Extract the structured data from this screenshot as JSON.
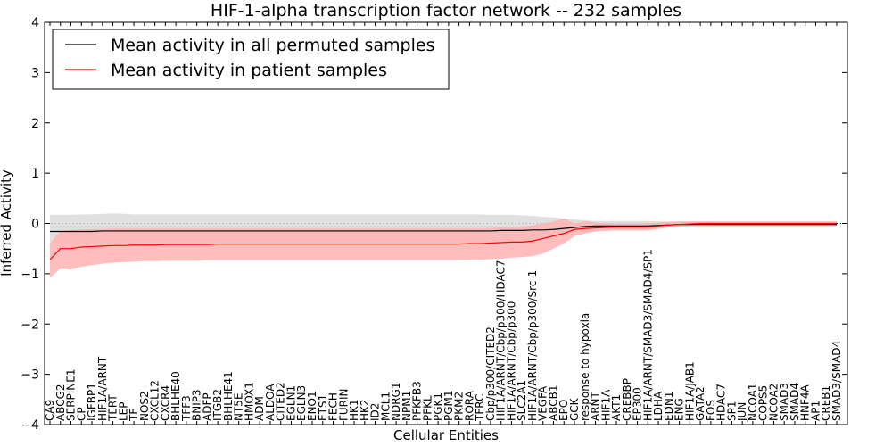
{
  "chart_data": {
    "type": "line",
    "title": "HIF-1-alpha transcription factor network -- 232 samples",
    "xlabel": "Cellular Entities",
    "ylabel": "Inferred Activity",
    "ylim": [
      -4,
      4
    ],
    "yticks": [
      "4",
      "3",
      "2",
      "1",
      "0",
      "−1",
      "−2",
      "−3",
      "−4"
    ],
    "ytick_values": [
      4,
      3,
      2,
      1,
      0,
      -1,
      -2,
      -3,
      -4
    ],
    "legend_position": "top-left",
    "categories": [
      "CA9",
      "ABCG2",
      "SERPINE1",
      "CP",
      "IGFBP1",
      "HIF1A/ARNT",
      "TERT",
      "LEP",
      "TF",
      "NOS2",
      "CXCL12",
      "CXCR4",
      "BHLHE40",
      "TFF3",
      "BNIP3",
      "ADFP",
      "ITGB2",
      "BHLHE41",
      "NT5E",
      "HMOX1",
      "ADM",
      "ALDOA",
      "CITED2",
      "EGLN1",
      "EGLN3",
      "ENO1",
      "ETS1",
      "FECH",
      "FURIN",
      "HK1",
      "HK2",
      "ID2",
      "MCL1",
      "NDRG1",
      "NPM1",
      "PFKFB3",
      "PFKL",
      "PGK1",
      "PGM1",
      "PKM2",
      "RORA",
      "TFRC",
      "Cbp/p300/CITED2",
      "HIF1A/ARNT/Cbp/p300/HDAC7",
      "HIF1A/ARNT/Cbp/p300",
      "SLC2A1",
      "HIF1A/ARNT/Cbp/p300/Src-1",
      "VEGFA",
      "ABCB1",
      "EPO",
      "GCK",
      "response to hypoxia",
      "ARNT",
      "HIF1A",
      "AKT1",
      "CREBBP",
      "EP300",
      "HIF1A/ARNT/SMAD3/SMAD4/SP1",
      "LDHA",
      "EDN1",
      "ENG",
      "HIF1A/JAB1",
      "GATA2",
      "FOS",
      "HDAC7",
      "SP1",
      "JUN",
      "NCOA1",
      "COPS5",
      "NCOA2",
      "SMAD3",
      "SMAD4",
      "HNF4A",
      "AP1",
      "CREB1",
      "SMAD3/SMAD4"
    ],
    "series": [
      {
        "name": "Mean activity in all permuted samples",
        "color": "#000000",
        "band_color": "#d3d3d3",
        "values": [
          -0.16,
          -0.16,
          -0.16,
          -0.16,
          -0.16,
          -0.15,
          -0.15,
          -0.15,
          -0.15,
          -0.15,
          -0.15,
          -0.15,
          -0.15,
          -0.15,
          -0.15,
          -0.15,
          -0.15,
          -0.15,
          -0.15,
          -0.15,
          -0.15,
          -0.15,
          -0.15,
          -0.15,
          -0.15,
          -0.15,
          -0.15,
          -0.15,
          -0.15,
          -0.15,
          -0.15,
          -0.15,
          -0.15,
          -0.15,
          -0.15,
          -0.15,
          -0.15,
          -0.15,
          -0.15,
          -0.15,
          -0.15,
          -0.15,
          -0.15,
          -0.14,
          -0.14,
          -0.14,
          -0.13,
          -0.13,
          -0.12,
          -0.1,
          -0.08,
          -0.06,
          -0.05,
          -0.05,
          -0.05,
          -0.05,
          -0.05,
          -0.05,
          -0.04,
          -0.03,
          -0.02,
          -0.02,
          -0.02,
          -0.02,
          -0.02,
          -0.02,
          -0.02,
          -0.02,
          -0.02,
          -0.02,
          -0.02,
          -0.02,
          -0.02,
          -0.02,
          -0.02,
          -0.02
        ],
        "upper": [
          0.17,
          0.17,
          0.17,
          0.18,
          0.18,
          0.19,
          0.2,
          0.19,
          0.18,
          0.18,
          0.18,
          0.18,
          0.18,
          0.18,
          0.18,
          0.18,
          0.18,
          0.18,
          0.18,
          0.18,
          0.18,
          0.18,
          0.18,
          0.18,
          0.18,
          0.18,
          0.18,
          0.18,
          0.18,
          0.18,
          0.18,
          0.18,
          0.18,
          0.18,
          0.18,
          0.18,
          0.18,
          0.18,
          0.18,
          0.18,
          0.18,
          0.18,
          0.17,
          0.17,
          0.17,
          0.16,
          0.15,
          0.13,
          0.12,
          0.1,
          0.08,
          0.06,
          0.05,
          0.05,
          0.05,
          0.05,
          0.05,
          0.05,
          0.04,
          0.04,
          0.04,
          0.04,
          0.04,
          0.04,
          0.04,
          0.04,
          0.04,
          0.04,
          0.04,
          0.04,
          0.04,
          0.04,
          0.04,
          0.04,
          0.04,
          0.04
        ],
        "lower": [
          -0.4,
          -0.4,
          -0.4,
          -0.4,
          -0.4,
          -0.4,
          -0.4,
          -0.4,
          -0.4,
          -0.4,
          -0.4,
          -0.4,
          -0.4,
          -0.4,
          -0.4,
          -0.4,
          -0.4,
          -0.4,
          -0.4,
          -0.4,
          -0.4,
          -0.4,
          -0.4,
          -0.4,
          -0.4,
          -0.4,
          -0.4,
          -0.4,
          -0.4,
          -0.4,
          -0.4,
          -0.4,
          -0.4,
          -0.4,
          -0.4,
          -0.4,
          -0.4,
          -0.4,
          -0.4,
          -0.4,
          -0.4,
          -0.4,
          -0.4,
          -0.4,
          -0.39,
          -0.38,
          -0.36,
          -0.33,
          -0.3,
          -0.26,
          -0.22,
          -0.18,
          -0.15,
          -0.13,
          -0.12,
          -0.12,
          -0.12,
          -0.12,
          -0.1,
          -0.08,
          -0.07,
          -0.07,
          -0.07,
          -0.07,
          -0.07,
          -0.07,
          -0.07,
          -0.07,
          -0.07,
          -0.07,
          -0.07,
          -0.07,
          -0.07,
          -0.07,
          -0.07,
          -0.07
        ]
      },
      {
        "name": "Mean activity in patient samples",
        "color": "#ff0000",
        "band_color": "#ffb3b3",
        "values": [
          -0.72,
          -0.5,
          -0.5,
          -0.47,
          -0.46,
          -0.45,
          -0.44,
          -0.44,
          -0.43,
          -0.43,
          -0.43,
          -0.42,
          -0.42,
          -0.42,
          -0.42,
          -0.42,
          -0.41,
          -0.41,
          -0.41,
          -0.41,
          -0.41,
          -0.41,
          -0.41,
          -0.41,
          -0.41,
          -0.41,
          -0.41,
          -0.41,
          -0.41,
          -0.41,
          -0.41,
          -0.41,
          -0.41,
          -0.41,
          -0.41,
          -0.41,
          -0.41,
          -0.41,
          -0.41,
          -0.41,
          -0.4,
          -0.4,
          -0.39,
          -0.38,
          -0.37,
          -0.37,
          -0.35,
          -0.3,
          -0.25,
          -0.2,
          -0.12,
          -0.1,
          -0.09,
          -0.08,
          -0.07,
          -0.07,
          -0.07,
          -0.07,
          -0.05,
          -0.03,
          -0.02,
          -0.01,
          0.0,
          0.0,
          0.0,
          0.0,
          0.0,
          0.0,
          0.0,
          0.0,
          0.0,
          0.0,
          0.0,
          0.0,
          0.0,
          0.0
        ],
        "upper": [
          -0.4,
          -0.15,
          -0.13,
          -0.12,
          -0.11,
          -0.11,
          -0.1,
          -0.1,
          -0.1,
          -0.1,
          -0.1,
          -0.1,
          -0.1,
          -0.1,
          -0.1,
          -0.1,
          -0.1,
          -0.1,
          -0.1,
          -0.1,
          -0.1,
          -0.1,
          -0.1,
          -0.1,
          -0.1,
          -0.1,
          -0.1,
          -0.1,
          -0.1,
          -0.1,
          -0.1,
          -0.1,
          -0.1,
          -0.1,
          -0.1,
          -0.1,
          -0.1,
          -0.1,
          -0.1,
          -0.1,
          -0.1,
          -0.1,
          -0.09,
          -0.08,
          -0.07,
          -0.06,
          -0.04,
          0.0,
          0.04,
          0.1,
          0.0,
          0.05,
          0.02,
          0.0,
          0.0,
          0.0,
          0.0,
          0.0,
          0.02,
          0.03,
          0.04,
          0.04,
          0.04,
          0.04,
          0.04,
          0.04,
          0.04,
          0.04,
          0.04,
          0.04,
          0.04,
          0.04,
          0.04,
          0.04,
          0.04,
          0.04
        ],
        "lower": [
          -1.08,
          -0.9,
          -0.92,
          -0.86,
          -0.83,
          -0.8,
          -0.78,
          -0.77,
          -0.76,
          -0.75,
          -0.75,
          -0.74,
          -0.74,
          -0.74,
          -0.74,
          -0.73,
          -0.73,
          -0.73,
          -0.73,
          -0.73,
          -0.73,
          -0.73,
          -0.73,
          -0.73,
          -0.73,
          -0.73,
          -0.73,
          -0.73,
          -0.73,
          -0.73,
          -0.73,
          -0.73,
          -0.73,
          -0.73,
          -0.73,
          -0.73,
          -0.73,
          -0.73,
          -0.73,
          -0.73,
          -0.72,
          -0.72,
          -0.71,
          -0.7,
          -0.68,
          -0.67,
          -0.65,
          -0.6,
          -0.5,
          -0.4,
          -0.25,
          -0.2,
          -0.16,
          -0.15,
          -0.14,
          -0.14,
          -0.14,
          -0.14,
          -0.11,
          -0.08,
          -0.06,
          -0.05,
          -0.04,
          -0.04,
          -0.04,
          -0.04,
          -0.04,
          -0.04,
          -0.04,
          -0.04,
          -0.04,
          -0.04,
          -0.04,
          -0.04,
          -0.04,
          -0.04
        ]
      }
    ]
  }
}
